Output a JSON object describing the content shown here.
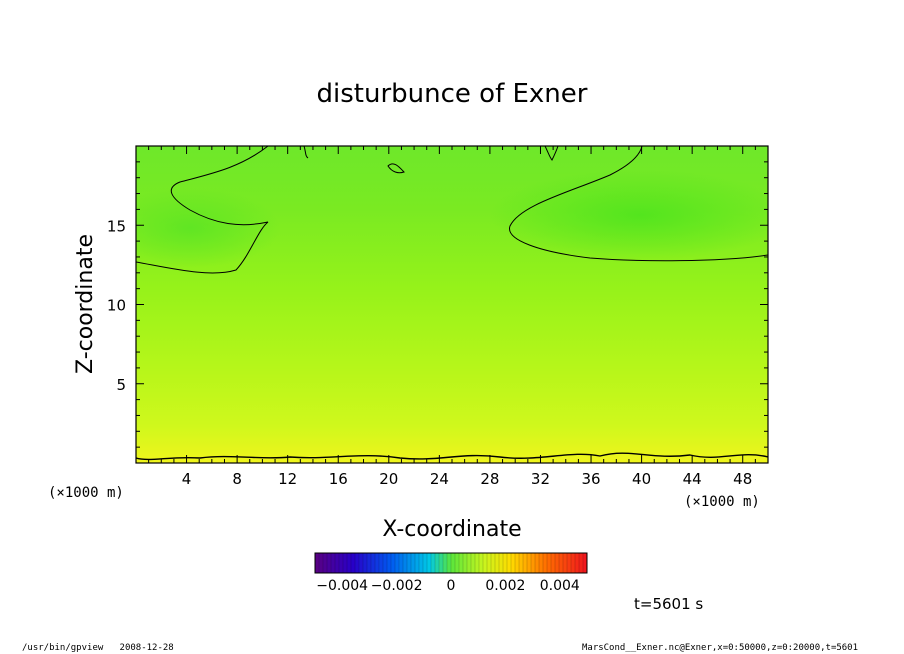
{
  "chart_data": {
    "type": "heatmap",
    "title": "disturbunce of Exner",
    "xlabel": "X-coordinate",
    "ylabel": "Z-coordinate",
    "x_unit_left": "(×1000 m)",
    "x_unit_right": "(×1000 m)",
    "x_range": [
      0,
      50
    ],
    "y_range": [
      0,
      20
    ],
    "x_ticks": [
      4,
      8,
      12,
      16,
      20,
      24,
      28,
      32,
      36,
      40,
      44,
      48
    ],
    "y_ticks": [
      5,
      10,
      15
    ],
    "colorbar": {
      "range": [
        -0.005,
        0.005
      ],
      "ticks": [
        -0.004,
        -0.002,
        0,
        0.002,
        0.004
      ],
      "tick_labels": [
        "−0.004",
        "−0.002",
        "0",
        "0.002",
        "0.004"
      ]
    },
    "contour_level": 0,
    "time_label": "t=5601 s",
    "footer_left": "/usr/bin/gpview   2008-12-28",
    "footer_right": "MarsCond__Exner.nc@Exner,x=0:50000,z=0:20000,t=5601"
  }
}
